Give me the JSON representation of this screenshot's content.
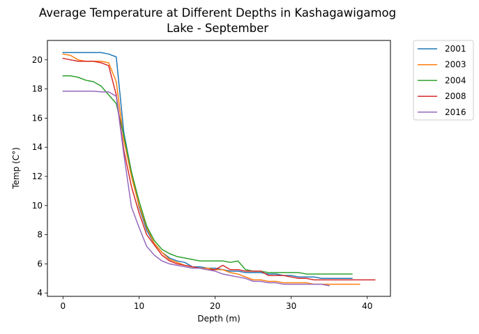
{
  "chart_data": {
    "type": "line",
    "title_line1": "Average Temperature at Different Depths in Kashagawigamog",
    "title_line2": "Lake - September",
    "xlabel": "Depth (m)",
    "ylabel": "Temp (C°)",
    "xlim": [
      -2.05,
      43.05
    ],
    "ylim": [
      3.77,
      21.33
    ],
    "xticks": [
      0,
      10,
      20,
      30,
      40
    ],
    "yticks": [
      4,
      6,
      8,
      10,
      12,
      14,
      16,
      18,
      20
    ],
    "grid": false,
    "legend_position": "outside-upper-right",
    "series": [
      {
        "name": "2001",
        "color": "#1f77b4",
        "x": [
          0,
          1,
          2,
          3,
          4,
          5,
          6,
          7,
          8,
          9,
          10,
          11,
          12,
          13,
          14,
          15,
          16,
          17,
          18,
          19,
          20,
          21,
          22,
          23,
          24,
          25,
          26,
          27,
          28,
          29,
          30,
          31,
          32,
          33,
          34,
          35,
          36,
          37,
          38
        ],
        "y": [
          20.5,
          20.5,
          20.5,
          20.5,
          20.5,
          20.5,
          20.4,
          20.2,
          15.0,
          12.3,
          9.9,
          8.3,
          7.4,
          6.8,
          6.4,
          6.2,
          6.1,
          5.8,
          5.8,
          5.7,
          5.7,
          5.6,
          5.5,
          5.5,
          5.4,
          5.4,
          5.4,
          5.3,
          5.3,
          5.2,
          5.2,
          5.1,
          5.1,
          5.1,
          5.0,
          5.0,
          5.0,
          5.0,
          5.0
        ]
      },
      {
        "name": "2003",
        "color": "#ff7f0e",
        "x": [
          0,
          1,
          2,
          3,
          4,
          5,
          6,
          7,
          8,
          9,
          10,
          11,
          12,
          13,
          14,
          15,
          16,
          17,
          18,
          19,
          20,
          21,
          22,
          23,
          24,
          25,
          26,
          27,
          28,
          29,
          30,
          31,
          32,
          33,
          34,
          35,
          36,
          37,
          38,
          39
        ],
        "y": [
          20.4,
          20.3,
          20.0,
          19.9,
          19.9,
          19.9,
          19.8,
          18.5,
          14.5,
          12.0,
          10.0,
          8.5,
          7.4,
          6.8,
          6.3,
          6.1,
          5.9,
          5.8,
          5.7,
          5.7,
          5.6,
          5.6,
          5.4,
          5.3,
          5.1,
          4.9,
          4.9,
          4.8,
          4.8,
          4.7,
          4.7,
          4.7,
          4.7,
          4.6,
          4.6,
          4.6,
          4.6,
          4.6,
          4.6,
          4.6
        ]
      },
      {
        "name": "2004",
        "color": "#2ca02c",
        "x": [
          0,
          1,
          2,
          3,
          4,
          5,
          6,
          7,
          8,
          9,
          10,
          11,
          12,
          13,
          14,
          15,
          16,
          17,
          18,
          19,
          20,
          21,
          22,
          23,
          24,
          25,
          26,
          27,
          28,
          29,
          30,
          31,
          32,
          33,
          34,
          35,
          36,
          37,
          38
        ],
        "y": [
          18.9,
          18.9,
          18.8,
          18.6,
          18.5,
          18.2,
          17.6,
          17.0,
          14.8,
          12.3,
          10.3,
          8.6,
          7.6,
          7.0,
          6.7,
          6.5,
          6.4,
          6.3,
          6.2,
          6.2,
          6.2,
          6.2,
          6.1,
          6.2,
          5.6,
          5.5,
          5.5,
          5.4,
          5.4,
          5.4,
          5.4,
          5.4,
          5.3,
          5.3,
          5.3,
          5.3,
          5.3,
          5.3,
          5.3
        ]
      },
      {
        "name": "2008",
        "color": "#d62728",
        "x": [
          0,
          1,
          2,
          3,
          4,
          5,
          6,
          7,
          8,
          9,
          10,
          11,
          12,
          13,
          14,
          15,
          16,
          17,
          18,
          19,
          20,
          21,
          22,
          23,
          24,
          25,
          26,
          27,
          28,
          29,
          30,
          31,
          32,
          33,
          34,
          35,
          36,
          37,
          38,
          39,
          40,
          41
        ],
        "y": [
          20.1,
          20.0,
          19.9,
          19.9,
          19.9,
          19.8,
          19.6,
          17.6,
          13.8,
          11.3,
          9.5,
          8.0,
          7.3,
          6.6,
          6.2,
          6.0,
          5.9,
          5.8,
          5.7,
          5.6,
          5.6,
          5.9,
          5.6,
          5.6,
          5.5,
          5.5,
          5.5,
          5.2,
          5.2,
          5.2,
          5.1,
          5.0,
          5.0,
          4.9,
          4.9,
          4.9,
          4.9,
          4.9,
          4.9,
          4.9,
          4.9,
          4.9
        ]
      },
      {
        "name": "2016",
        "color": "#9467bd",
        "x": [
          0,
          1,
          2,
          3,
          4,
          5,
          6,
          7,
          8,
          9,
          10,
          11,
          12,
          13,
          14,
          15,
          16,
          17,
          18,
          19,
          20,
          21,
          22,
          23,
          24,
          25,
          26,
          27,
          28,
          29,
          30,
          31,
          32,
          33,
          34,
          35
        ],
        "y": [
          17.85,
          17.85,
          17.85,
          17.85,
          17.85,
          17.8,
          17.8,
          17.5,
          13.5,
          9.9,
          8.5,
          7.2,
          6.6,
          6.2,
          6.0,
          5.9,
          5.8,
          5.7,
          5.7,
          5.6,
          5.5,
          5.3,
          5.2,
          5.1,
          5.0,
          4.8,
          4.8,
          4.7,
          4.7,
          4.6,
          4.6,
          4.6,
          4.6,
          4.6,
          4.6,
          4.5
        ]
      }
    ]
  }
}
